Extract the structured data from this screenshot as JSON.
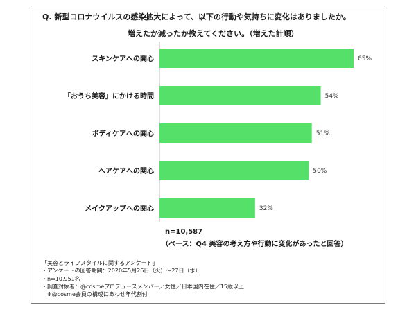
{
  "question": {
    "line1": "Q. 新型コロナウイルスの感染拡大によって、以下の行動や気持ちに変化はありましたか。",
    "line2": "増えたか減ったか教えてください。（増えた計順）"
  },
  "chart_data": {
    "type": "bar",
    "orientation": "horizontal",
    "categories": [
      "スキンケアへの関心",
      "「おうち美容」にかける時間",
      "ボディケアへの関心",
      "ヘアケアへの関心",
      "メイクアップへの関心"
    ],
    "values": [
      65,
      54,
      51,
      50,
      32
    ],
    "value_labels": [
      "65%",
      "54%",
      "51%",
      "50%",
      "32%"
    ],
    "unit": "%",
    "xlim": [
      0,
      70
    ],
    "grid": false,
    "bar_color": "#55e06a"
  },
  "base": {
    "n": "n=10,587",
    "note": "（ベース：Q4 美容の考え方や行動に変化があったと回答）"
  },
  "notes": [
    "「美容とライフスタイルに関するアンケート」",
    "・アンケートの回答期間：2020年5月26日（火）～27日（水）",
    "・n=10,951名",
    "・調査対象者：@cosmeプロデュースメンバー／女性／日本国内在住／15歳以上",
    "　※@cosme会員の構成にあわせ年代割付"
  ]
}
